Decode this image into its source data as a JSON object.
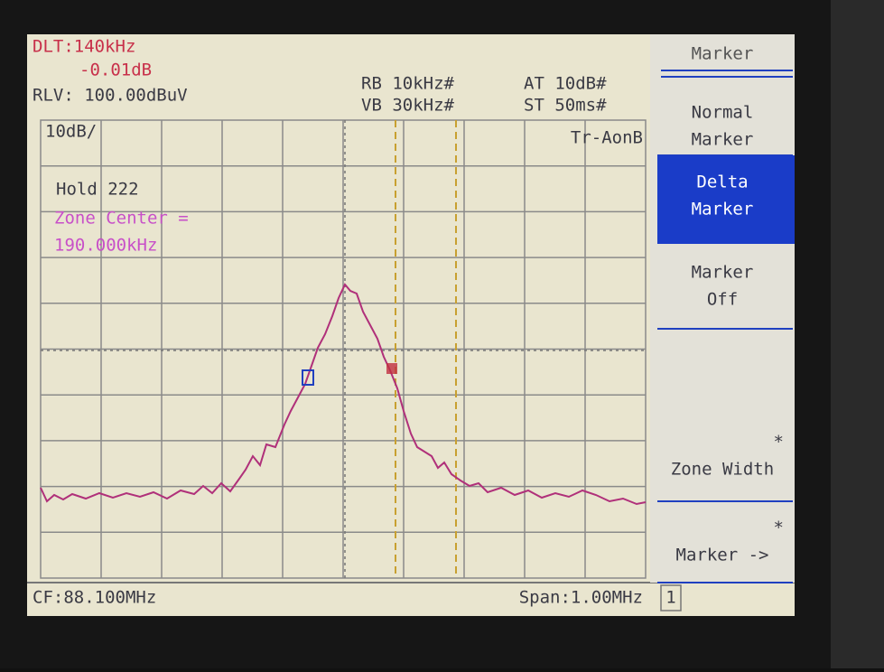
{
  "header": {
    "delta": "DLT:140kHz",
    "delta_level": "-0.01dB",
    "ref_level": "RLV: 100.00dBuV",
    "rbw": "RB 10kHz#",
    "vbw": "VB 30kHz#",
    "atten": "AT 10dB#",
    "sweep": "ST 50ms#"
  },
  "screen": {
    "scale": "10dB/",
    "trace_mode": "Tr-AonB",
    "hold": "Hold  222",
    "zone_label": "Zone Center =",
    "zone_value": "190.000kHz"
  },
  "footer": {
    "center": "CF:88.100MHz",
    "span": "Span:1.00MHz",
    "page": "1"
  },
  "menu": {
    "title": "Marker",
    "items": [
      {
        "lines": [
          "Normal",
          "Marker"
        ]
      },
      {
        "lines": [
          "Delta",
          "Marker"
        ],
        "selected": true
      },
      {
        "lines": [
          "Marker",
          "Off"
        ]
      },
      {
        "lines": [
          "*",
          "Zone Width"
        ]
      },
      {
        "lines": [
          "*",
          "Marker ->"
        ]
      }
    ]
  }
}
